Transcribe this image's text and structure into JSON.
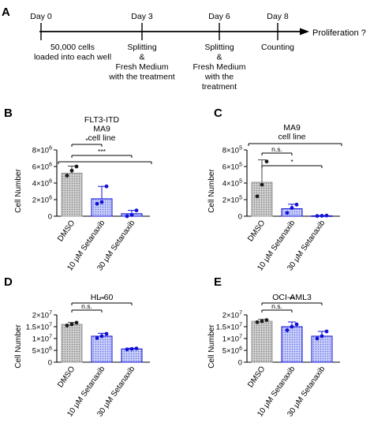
{
  "timeline": {
    "panel_label": "A",
    "days": [
      {
        "label": "Day 0",
        "desc": [
          "50,000 cells",
          "loaded into each well"
        ]
      },
      {
        "label": "Day 3",
        "desc": [
          "Splitting",
          "&",
          "Fresh Medium",
          "with the treatment"
        ]
      },
      {
        "label": "Day 6",
        "desc": [
          "Splitting",
          "&",
          "Fresh Medium",
          "with the",
          "treatment"
        ]
      },
      {
        "label": "Day 8",
        "desc": [
          "Counting"
        ]
      }
    ],
    "end_label": "Proliferation ?"
  },
  "colors": {
    "dmso": "#9a9a9a",
    "drug_fill": "#aab4f2",
    "drug_stroke": "#1010d8",
    "dot": "#1a1a1a",
    "drug_dot": "#1010d8"
  },
  "chart_data": [
    {
      "type": "bar",
      "panel": "B",
      "title": [
        "FLT3-ITD",
        "MA9",
        "cell line"
      ],
      "ylabel": "Cell Number",
      "ylim": [
        0,
        8000000
      ],
      "yticks": [
        0,
        2000000,
        4000000,
        6000000,
        8000000
      ],
      "ytick_labels": [
        [
          "0",
          ""
        ],
        [
          "2×10",
          "6"
        ],
        [
          "4×10",
          "6"
        ],
        [
          "6×10",
          "6"
        ],
        [
          "8×10",
          "6"
        ]
      ],
      "categories": [
        "DMSO",
        "10 μM Setanaxib",
        "30 μM Setanaxib"
      ],
      "values": [
        5200000,
        2100000,
        300000
      ],
      "errors": [
        850000,
        1500000,
        400000
      ],
      "points": [
        [
          4900000,
          5500000,
          6000000
        ],
        [
          1500000,
          1700000,
          3600000
        ],
        [
          0,
          150000,
          700000
        ]
      ],
      "significance": [
        {
          "from": 0,
          "to": 1,
          "label": "*"
        },
        {
          "from": 0,
          "to": 2,
          "label": "***"
        },
        {
          "from": 0,
          "to": 3,
          "label": ""
        }
      ]
    },
    {
      "type": "bar",
      "panel": "C",
      "title": [
        "MA9",
        "cell line"
      ],
      "ylabel": "Cell Number",
      "ylim": [
        0,
        800000
      ],
      "yticks": [
        0,
        200000,
        400000,
        600000,
        800000
      ],
      "ytick_labels": [
        [
          "0",
          ""
        ],
        [
          "2×10",
          "5"
        ],
        [
          "4×10",
          "5"
        ],
        [
          "6×10",
          "5"
        ],
        [
          "8×10",
          "5"
        ]
      ],
      "categories": [
        "DMSO",
        "10 μM Setanaxib",
        "30 μM Setanaxib"
      ],
      "values": [
        410000,
        90000,
        5000
      ],
      "errors": [
        270000,
        55000,
        3000
      ],
      "points": [
        [
          240000,
          380000,
          660000
        ],
        [
          40000,
          100000,
          140000
        ],
        [
          3000,
          5000,
          8000
        ]
      ],
      "significance": [
        {
          "from": 0,
          "to": 1,
          "label": "n.s."
        },
        {
          "from": 0,
          "to": 2,
          "label": "*"
        },
        {
          "from": 0,
          "to": 3,
          "label": ""
        }
      ]
    },
    {
      "type": "bar",
      "panel": "D",
      "title": [
        "HL-60"
      ],
      "ylabel": "Cell Number",
      "ylim": [
        0,
        20000000
      ],
      "yticks": [
        0,
        5000000,
        10000000,
        15000000,
        20000000
      ],
      "ytick_labels": [
        [
          "0",
          ""
        ],
        [
          "5×10",
          "6"
        ],
        [
          "1×10",
          "7"
        ],
        [
          "1.5×10",
          "7"
        ],
        [
          "2×10",
          "7"
        ]
      ],
      "categories": [
        "DMSO",
        "10 μM Setanaxib",
        "30 μM Setanaxib"
      ],
      "values": [
        16000000,
        11000000,
        5600000
      ],
      "errors": [
        800000,
        1200000,
        300000
      ],
      "points": [
        [
          15500000,
          16000000,
          16700000
        ],
        [
          10200000,
          11000000,
          12000000
        ],
        [
          5400000,
          5600000,
          5800000
        ]
      ],
      "significance": [
        {
          "from": 0,
          "to": 1,
          "label": "n.s."
        },
        {
          "from": 0,
          "to": 2,
          "label": "**"
        }
      ]
    },
    {
      "type": "bar",
      "panel": "E",
      "title": [
        "OCI-AML3"
      ],
      "ylabel": "Cell Number",
      "ylim": [
        0,
        20000000
      ],
      "yticks": [
        0,
        5000000,
        10000000,
        15000000,
        20000000
      ],
      "ytick_labels": [
        [
          "0",
          ""
        ],
        [
          "5×10",
          "6"
        ],
        [
          "1×10",
          "7"
        ],
        [
          "1.5×10",
          "7"
        ],
        [
          "2×10",
          "7"
        ]
      ],
      "categories": [
        "DMSO",
        "10 μM Setanaxib",
        "30 μM Setanaxib"
      ],
      "values": [
        17300000,
        15000000,
        11000000
      ],
      "errors": [
        800000,
        2000000,
        2000000
      ],
      "points": [
        [
          16900000,
          17300000,
          17800000
        ],
        [
          13500000,
          15000000,
          16000000
        ],
        [
          10000000,
          11000000,
          13000000
        ]
      ],
      "significance": [
        {
          "from": 0,
          "to": 1,
          "label": "n.s."
        },
        {
          "from": 0,
          "to": 2,
          "label": "**"
        }
      ]
    }
  ]
}
